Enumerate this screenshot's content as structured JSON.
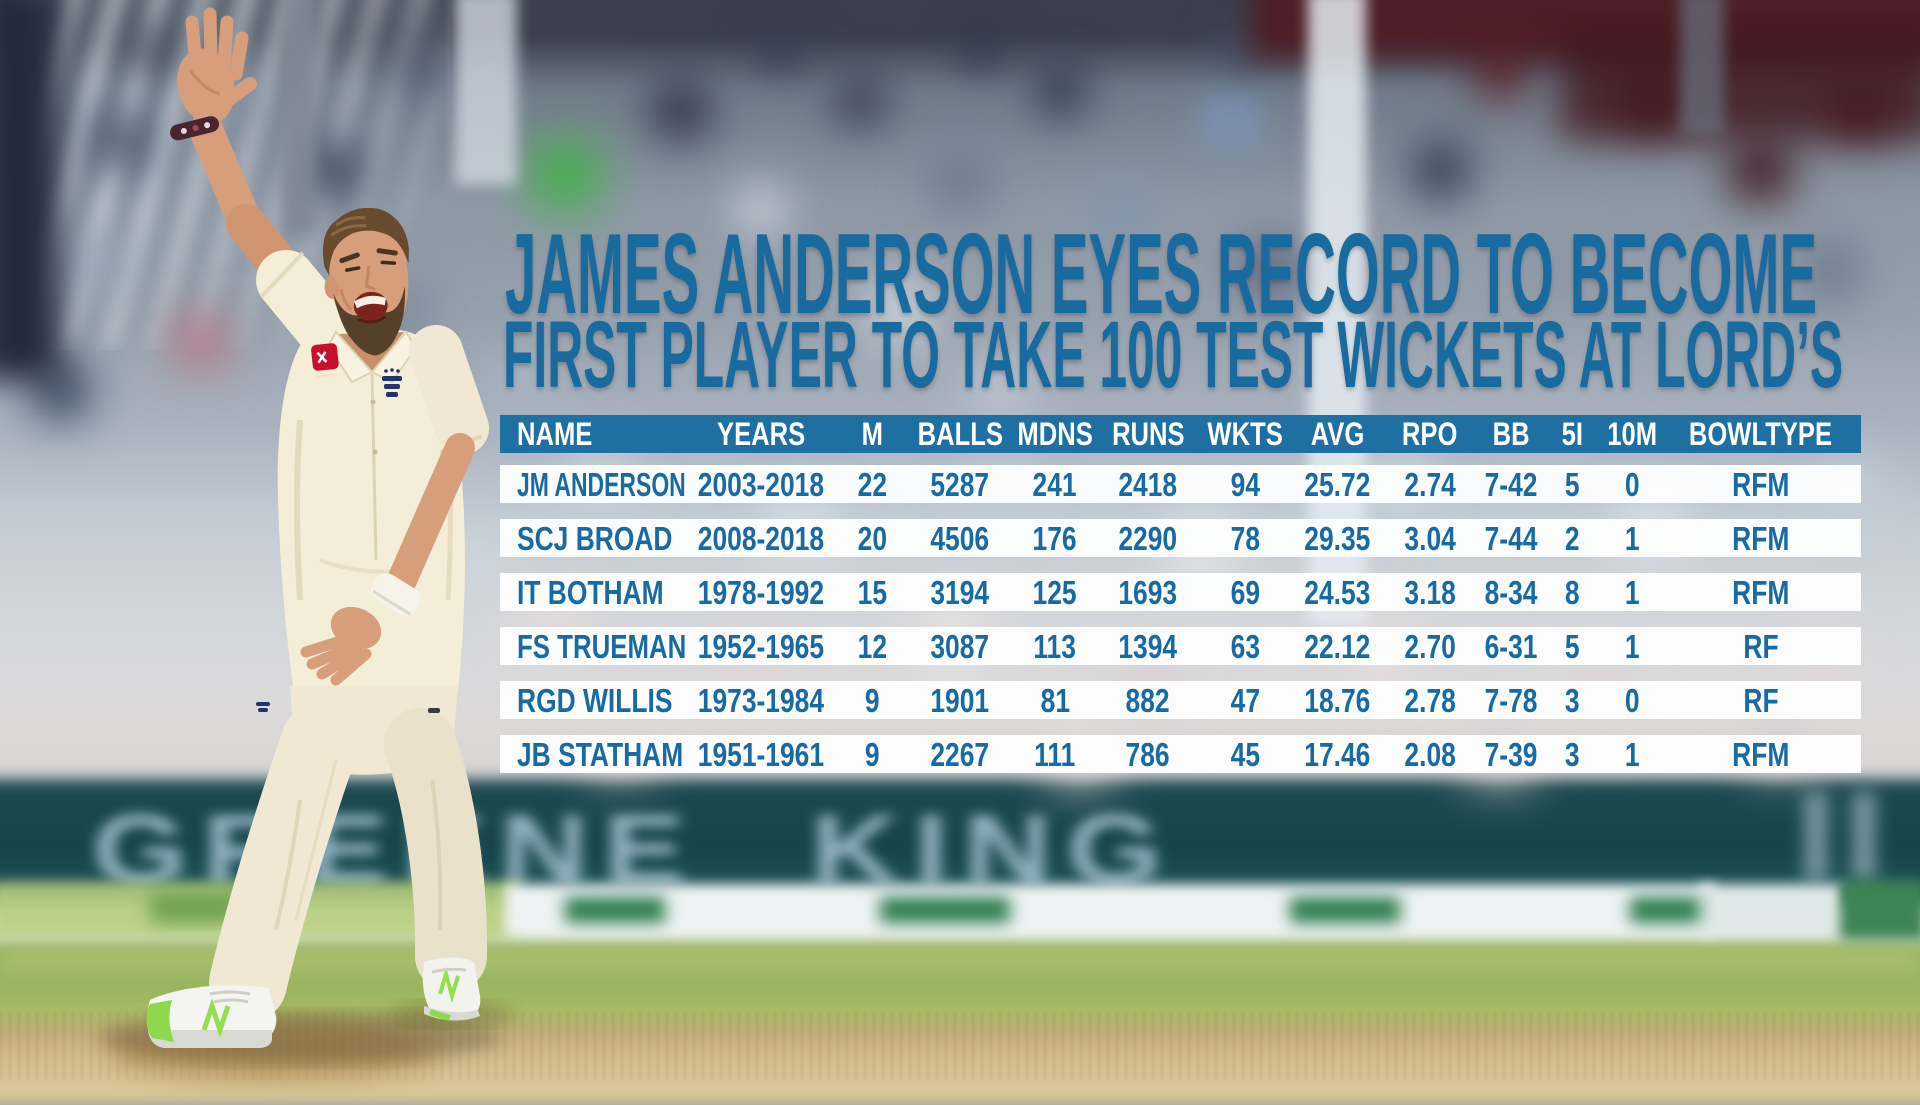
{
  "title": {
    "line1": "JAMES ANDERSON EYES RECORD TO BECOME",
    "line2": "FIRST PLAYER TO TAKE 100 TEST WICKETS AT LORD’S"
  },
  "chart_data": {
    "type": "table",
    "title": "JAMES ANDERSON EYES RECORD TO BECOME FIRST PLAYER TO TAKE 100 TEST WICKETS AT LORD’S",
    "columns": [
      "NAME",
      "YEARS",
      "M",
      "BALLS",
      "MDNS",
      "RUNS",
      "WKTS",
      "AVG",
      "RPO",
      "BB",
      "5I",
      "10M",
      "BOWLTYPE"
    ],
    "rows": [
      [
        "JM ANDERSON",
        "2003-2018",
        "22",
        "5287",
        "241",
        "2418",
        "94",
        "25.72",
        "2.74",
        "7-42",
        "5",
        "0",
        "RFM"
      ],
      [
        "SCJ BROAD",
        "2008-2018",
        "20",
        "4506",
        "176",
        "2290",
        "78",
        "29.35",
        "3.04",
        "7-44",
        "2",
        "1",
        "RFM"
      ],
      [
        "IT BOTHAM",
        "1978-1992",
        "15",
        "3194",
        "125",
        "1693",
        "69",
        "24.53",
        "3.18",
        "8-34",
        "8",
        "1",
        "RFM"
      ],
      [
        "FS TRUEMAN",
        "1952-1965",
        "12",
        "3087",
        "113",
        "1394",
        "63",
        "22.12",
        "2.70",
        "6-31",
        "5",
        "1",
        "RF"
      ],
      [
        "RGD WILLIS",
        "1973-1984",
        "9",
        "1901",
        "81",
        "882",
        "47",
        "18.76",
        "2.78",
        "7-78",
        "3",
        "0",
        "RF"
      ],
      [
        "JB STATHAM",
        "1951-1961",
        "9",
        "2267",
        "111",
        "786",
        "45",
        "17.46",
        "2.08",
        "7-39",
        "3",
        "1",
        "RFM"
      ]
    ]
  },
  "background": {
    "sponsor_banner": "GREENE KING"
  },
  "colors": {
    "headline_blue": "#196a9f",
    "table_header_bg": "#1e6fa2",
    "table_text_blue": "#176aa3",
    "row_bg": "rgba(255,255,255,0.93)",
    "banner_teal": "#1c4950",
    "banner_text": "#a9c8d8",
    "grass_green": "#93af5c",
    "pitch_tan": "#d2bc8d",
    "kit_cream": "#f4edd8",
    "sponsor_red": "#c8102e",
    "shoe_lime": "#8fd84e"
  }
}
